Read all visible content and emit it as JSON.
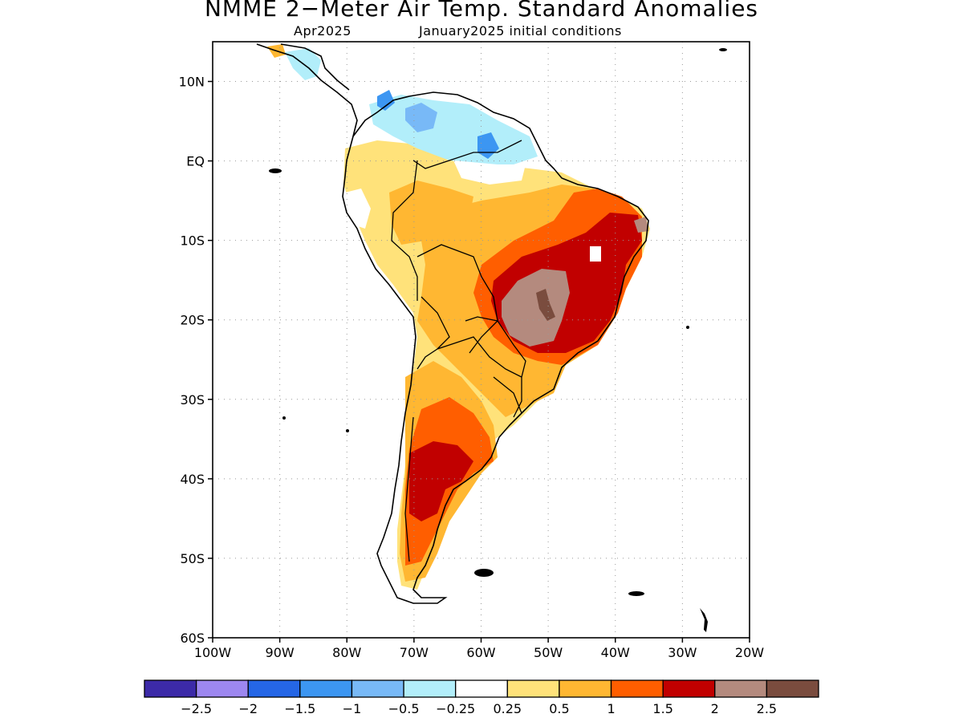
{
  "title": "NMME 2−Meter Air Temp. Standard Anomalies",
  "subtitle_left": "Apr2025",
  "subtitle_right": "January2025 initial conditions",
  "map": {
    "lon_range": [
      -100,
      -20
    ],
    "lat_range": [
      -60,
      15
    ],
    "lat_ticks": [
      {
        "value": 10,
        "label": "10N"
      },
      {
        "value": 0,
        "label": "EQ"
      },
      {
        "value": -10,
        "label": "10S"
      },
      {
        "value": -20,
        "label": "20S"
      },
      {
        "value": -30,
        "label": "30S"
      },
      {
        "value": -40,
        "label": "40S"
      },
      {
        "value": -50,
        "label": "50S"
      },
      {
        "value": -60,
        "label": "60S"
      }
    ],
    "lon_ticks": [
      {
        "value": -100,
        "label": "100W"
      },
      {
        "value": -90,
        "label": "90W"
      },
      {
        "value": -80,
        "label": "80W"
      },
      {
        "value": -70,
        "label": "70W"
      },
      {
        "value": -60,
        "label": "60W"
      },
      {
        "value": -50,
        "label": "50W"
      },
      {
        "value": -40,
        "label": "40W"
      },
      {
        "value": -30,
        "label": "30W"
      },
      {
        "value": -20,
        "label": "20W"
      }
    ],
    "grid": true
  },
  "legend": {
    "colors": [
      "#3c2aa8",
      "#9d87f0",
      "#2566e6",
      "#3c96f2",
      "#78b9f7",
      "#b2eefa",
      "#ffffff",
      "#ffe27a",
      "#ffb732",
      "#ff5e00",
      "#c10000",
      "#b48a7e",
      "#7a4c3e"
    ],
    "labels": [
      "−2.5",
      "−2",
      "−1.5",
      "−1",
      "−0.5",
      "−0.25",
      "0.25",
      "0.5",
      "1",
      "1.5",
      "2",
      "2.5"
    ]
  }
}
